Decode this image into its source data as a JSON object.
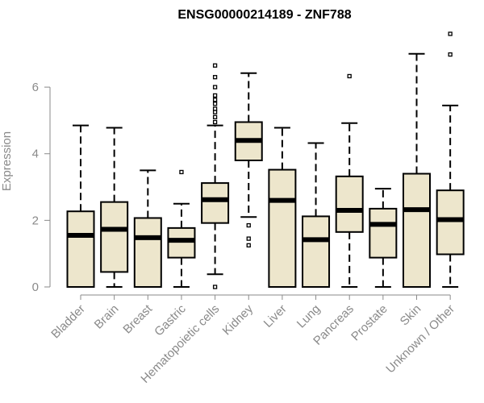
{
  "chart_data": {
    "type": "box",
    "title": "ENSG00000214189 - ZNF788",
    "xlabel": "",
    "ylabel": "Expression",
    "ylim": [
      0,
      7.6
    ],
    "yticks": [
      0,
      2,
      4,
      6
    ],
    "grid": false,
    "box_color": "#ede6cc",
    "median_color": "#000000",
    "categories": [
      "Bladder",
      "Brain",
      "Breast",
      "Gastric",
      "Hematopoietic cells",
      "Kidney",
      "Liver",
      "Lung",
      "Pancreas",
      "Prostate",
      "Skin",
      "Unknown / Other"
    ],
    "boxes": [
      {
        "label": "Bladder",
        "whisker_low": 0.0,
        "q1": 0.0,
        "median": 1.55,
        "q3": 2.27,
        "whisker_high": 4.85,
        "outliers": []
      },
      {
        "label": "Brain",
        "whisker_low": 0.0,
        "q1": 0.45,
        "median": 1.73,
        "q3": 2.55,
        "whisker_high": 4.78,
        "outliers": []
      },
      {
        "label": "Breast",
        "whisker_low": 0.0,
        "q1": 0.0,
        "median": 1.48,
        "q3": 2.07,
        "whisker_high": 3.5,
        "outliers": []
      },
      {
        "label": "Gastric",
        "whisker_low": 0.0,
        "q1": 0.88,
        "median": 1.4,
        "q3": 1.77,
        "whisker_high": 2.5,
        "outliers": [
          3.45
        ]
      },
      {
        "label": "Hematopoietic cells",
        "whisker_low": 0.38,
        "q1": 1.92,
        "median": 2.62,
        "q3": 3.12,
        "whisker_high": 4.85,
        "outliers": [
          0.0,
          4.95,
          5.1,
          5.25,
          5.35,
          5.5,
          5.62,
          5.75,
          6.0,
          6.3,
          6.65
        ]
      },
      {
        "label": "Kidney",
        "whisker_low": 2.1,
        "q1": 3.8,
        "median": 4.4,
        "q3": 4.95,
        "whisker_high": 6.42,
        "outliers": [
          1.25,
          1.45,
          1.85
        ]
      },
      {
        "label": "Liver",
        "whisker_low": 0.0,
        "q1": 0.0,
        "median": 2.6,
        "q3": 3.52,
        "whisker_high": 4.78,
        "outliers": []
      },
      {
        "label": "Lung",
        "whisker_low": 0.0,
        "q1": 0.0,
        "median": 1.42,
        "q3": 2.12,
        "whisker_high": 4.32,
        "outliers": []
      },
      {
        "label": "Pancreas",
        "whisker_low": 0.0,
        "q1": 1.65,
        "median": 2.3,
        "q3": 3.32,
        "whisker_high": 4.92,
        "outliers": [
          6.33
        ]
      },
      {
        "label": "Prostate",
        "whisker_low": 0.0,
        "q1": 0.88,
        "median": 1.88,
        "q3": 2.35,
        "whisker_high": 2.95,
        "outliers": []
      },
      {
        "label": "Skin",
        "whisker_low": 0.0,
        "q1": 0.0,
        "median": 2.32,
        "q3": 3.4,
        "whisker_high": 7.0,
        "outliers": []
      },
      {
        "label": "Unknown / Other",
        "whisker_low": 0.0,
        "q1": 0.98,
        "median": 2.02,
        "q3": 2.9,
        "whisker_high": 5.45,
        "outliers": [
          6.98,
          7.6
        ]
      }
    ]
  }
}
